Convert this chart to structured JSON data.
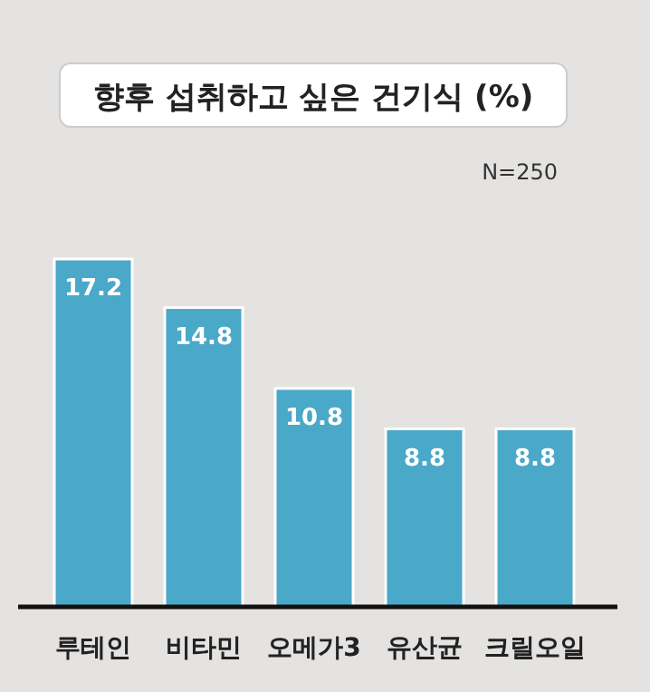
{
  "chart_data": {
    "type": "bar",
    "title": "향후 섭취하고 싶은 건기식 (%)",
    "annotations": [
      "N=250"
    ],
    "categories": [
      "루테인",
      "비타민",
      "오메가3",
      "유산균",
      "크릴오일"
    ],
    "values": [
      17.2,
      14.8,
      10.8,
      8.8,
      8.8
    ],
    "color": "#4aa8c8",
    "data_labels": true
  }
}
